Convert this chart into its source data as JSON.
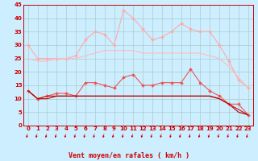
{
  "xlabel": "Vent moyen/en rafales ( km/h )",
  "background_color": "#cceeff",
  "grid_color": "#aacccc",
  "x": [
    0,
    1,
    2,
    3,
    4,
    5,
    6,
    7,
    8,
    9,
    10,
    11,
    12,
    13,
    14,
    15,
    16,
    17,
    18,
    19,
    20,
    21,
    22,
    23
  ],
  "series": [
    {
      "name": "rafales_max",
      "color": "#ffaaaa",
      "marker": "D",
      "markersize": 2.0,
      "linewidth": 0.8,
      "values": [
        30,
        25,
        25,
        25,
        25,
        26,
        32,
        35,
        34,
        30,
        43,
        40,
        36,
        32,
        33,
        35,
        38,
        36,
        35,
        35,
        30,
        24,
        17,
        14
      ]
    },
    {
      "name": "rafales_moy",
      "color": "#ffbbbb",
      "marker": null,
      "markersize": 0,
      "linewidth": 0.8,
      "values": [
        25,
        24,
        24,
        25,
        25,
        25,
        26,
        27,
        28,
        28,
        28,
        28,
        27,
        27,
        27,
        27,
        27,
        27,
        27,
        26,
        25,
        22,
        18,
        14
      ]
    },
    {
      "name": "vent_rafales",
      "color": "#ee5555",
      "marker": "D",
      "markersize": 2.0,
      "linewidth": 0.8,
      "values": [
        13,
        10,
        11,
        12,
        12,
        11,
        16,
        16,
        15,
        14,
        18,
        19,
        15,
        15,
        16,
        16,
        16,
        21,
        16,
        13,
        11,
        8,
        8,
        4
      ]
    },
    {
      "name": "vent_moy_line",
      "color": "#cc1111",
      "marker": null,
      "markersize": 0,
      "linewidth": 0.8,
      "values": [
        13,
        10,
        11,
        11,
        11,
        11,
        11,
        11,
        11,
        11,
        11,
        11,
        11,
        11,
        11,
        11,
        11,
        11,
        11,
        11,
        10,
        8,
        6,
        4
      ]
    },
    {
      "name": "vent_min",
      "color": "#bb0000",
      "marker": null,
      "markersize": 0,
      "linewidth": 0.8,
      "values": [
        13,
        10,
        10,
        11,
        11,
        11,
        11,
        11,
        11,
        11,
        11,
        11,
        11,
        11,
        11,
        11,
        11,
        11,
        11,
        11,
        10,
        8,
        5,
        4
      ]
    }
  ],
  "ylim": [
    0,
    45
  ],
  "yticks": [
    0,
    5,
    10,
    15,
    20,
    25,
    30,
    35,
    40,
    45
  ],
  "tick_color": "#cc0000",
  "tick_fontsize": 5.0,
  "xlabel_fontsize": 6.0,
  "arrow_color": "#cc0000"
}
